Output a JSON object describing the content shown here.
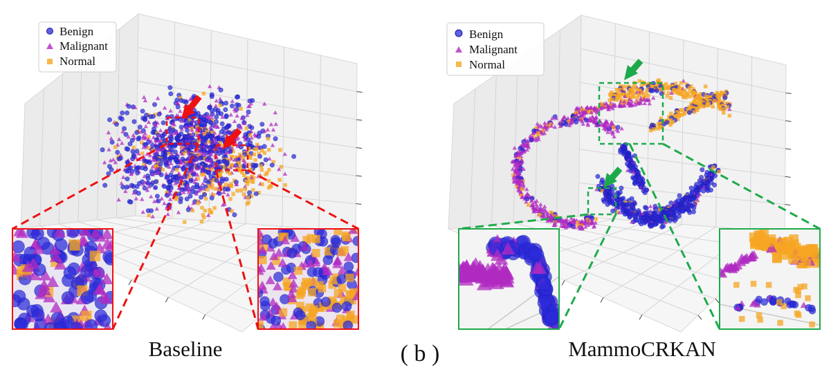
{
  "figure": {
    "caption": "( b )",
    "panels": [
      {
        "id": "baseline",
        "title": "Baseline"
      },
      {
        "id": "mammocrkan",
        "title": "MammoCRKAN"
      }
    ]
  },
  "legend": {
    "entries": [
      {
        "label": "Benign",
        "marker": "circle",
        "color": "#2b2bd9"
      },
      {
        "label": "Malignant",
        "marker": "triangle",
        "color": "#b02bc2"
      },
      {
        "label": "Normal",
        "marker": "square",
        "color": "#f5a623"
      }
    ]
  },
  "colors": {
    "benign": "#2b2bd9",
    "malignant": "#b02bc2",
    "normal": "#f5a623",
    "baseline_highlight": "#ee1111",
    "mammocrkan_highlight": "#1daa4a"
  },
  "chart_data": [
    {
      "type": "scatter",
      "title": "Baseline",
      "projection": "3d",
      "series": [
        {
          "name": "Benign",
          "marker": "circle"
        },
        {
          "name": "Malignant",
          "marker": "triangle"
        },
        {
          "name": "Normal",
          "marker": "square"
        }
      ],
      "grid": true,
      "legend_position": "top-left"
    },
    {
      "type": "scatter",
      "title": "MammoCRKAN",
      "projection": "3d",
      "series": [
        {
          "name": "Benign",
          "marker": "circle"
        },
        {
          "name": "Malignant",
          "marker": "triangle"
        },
        {
          "name": "Normal",
          "marker": "square"
        }
      ],
      "grid": true,
      "legend_position": "top-left"
    }
  ]
}
